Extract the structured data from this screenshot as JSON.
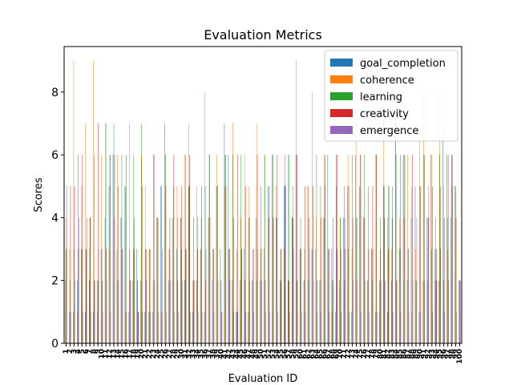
{
  "chart_data": {
    "type": "bar",
    "title": "Evaluation Metrics",
    "xlabel": "Evaluation ID",
    "ylabel": "Scores",
    "ylim": [
      0,
      9.45
    ],
    "yticks": [
      0,
      2,
      4,
      6,
      8
    ],
    "grid": false,
    "legend_position": "top-right",
    "categories": [
      "1",
      "2",
      "3",
      "4",
      "5",
      "6",
      "7",
      "8",
      "9",
      "10",
      "11",
      "12",
      "13",
      "14",
      "15",
      "16",
      "17",
      "18",
      "19",
      "20",
      "21",
      "22",
      "23",
      "24",
      "25",
      "26",
      "27",
      "28",
      "29",
      "30",
      "31",
      "32",
      "33",
      "34",
      "35",
      "36",
      "37",
      "38",
      "39",
      "40",
      "41",
      "42",
      "43",
      "44",
      "45",
      "46",
      "47",
      "48",
      "49",
      "50",
      "51",
      "52",
      "53",
      "54",
      "55",
      "56",
      "57",
      "58",
      "59",
      "60",
      "61",
      "62",
      "63",
      "64",
      "65",
      "66",
      "67",
      "68",
      "69",
      "70",
      "71",
      "72",
      "73",
      "74",
      "75",
      "76",
      "77",
      "78",
      "79",
      "80",
      "81",
      "82",
      "83",
      "84",
      "85",
      "86",
      "87",
      "88",
      "89",
      "90",
      "91",
      "92",
      "93",
      "94",
      "95",
      "96",
      "97",
      "98",
      "99",
      "100"
    ],
    "series": [
      {
        "name": "goal_completion",
        "color": "#1f77b4",
        "values": [
          2,
          1,
          1,
          2,
          3,
          1,
          2,
          1,
          2,
          3,
          4,
          5,
          6,
          3,
          4,
          5,
          1,
          2,
          3,
          2,
          1,
          1,
          1,
          4,
          5,
          7,
          2,
          4,
          3,
          4,
          2,
          5,
          1,
          2,
          3,
          1,
          4,
          2,
          5,
          3,
          7,
          6,
          2,
          1,
          2,
          3,
          1,
          2,
          4,
          2,
          3,
          5,
          6,
          4,
          2,
          5,
          2,
          4,
          6,
          3,
          2,
          5,
          3,
          3,
          2,
          4,
          6,
          3,
          1,
          2,
          4,
          5,
          1,
          6,
          5,
          4,
          2,
          3,
          1,
          2,
          5,
          1,
          2,
          7,
          3,
          6,
          2,
          4,
          5,
          1,
          2,
          4,
          6,
          3,
          2,
          7,
          6,
          4,
          5,
          2
        ]
      },
      {
        "name": "coherence",
        "color": "#ff7f0e",
        "values": [
          4,
          3,
          9,
          1,
          5,
          7,
          3,
          9,
          1,
          6,
          7,
          3,
          2,
          6,
          4,
          1,
          7,
          3,
          2,
          6,
          5,
          3,
          2,
          4,
          1,
          6,
          3,
          2,
          5,
          4,
          6,
          7,
          2,
          5,
          3,
          8,
          4,
          3,
          6,
          2,
          5,
          3,
          7,
          1,
          4,
          6,
          5,
          2,
          7,
          3,
          6,
          4,
          1,
          5,
          2,
          3,
          6,
          4,
          9,
          3,
          2,
          5,
          8,
          4,
          2,
          6,
          3,
          1,
          5,
          4,
          2,
          6,
          3,
          7,
          5,
          4,
          2,
          3,
          6,
          1,
          8,
          4,
          3,
          8,
          4,
          2,
          6,
          5,
          3,
          7,
          8,
          4,
          6,
          2,
          8,
          5,
          3,
          6,
          4,
          2
        ]
      },
      {
        "name": "learning",
        "color": "#2ca02c",
        "values": [
          3,
          2,
          3,
          6,
          3,
          3,
          4,
          6,
          2,
          3,
          7,
          6,
          7,
          2,
          6,
          5,
          3,
          6,
          2,
          7,
          3,
          3,
          6,
          4,
          5,
          6,
          3,
          5,
          4,
          3,
          6,
          5,
          2,
          4,
          4,
          5,
          6,
          3,
          5,
          2,
          6,
          3,
          6,
          3,
          6,
          2,
          4,
          3,
          2,
          5,
          6,
          4,
          6,
          4,
          3,
          6,
          6,
          5,
          2,
          4,
          3,
          2,
          3,
          6,
          5,
          4,
          3,
          2,
          6,
          4,
          5,
          3,
          6,
          4,
          6,
          6,
          5,
          2,
          6,
          4,
          5,
          5,
          4,
          6,
          3,
          6,
          3,
          1,
          2,
          5,
          6,
          2,
          3,
          4,
          6,
          2,
          4,
          6,
          5,
          2
        ]
      },
      {
        "name": "creativity",
        "color": "#d62728",
        "values": [
          3,
          5,
          5,
          3,
          6,
          3,
          4,
          2,
          7,
          2,
          3,
          6,
          4,
          5,
          3,
          6,
          2,
          4,
          1,
          5,
          3,
          3,
          6,
          4,
          1,
          5,
          4,
          6,
          2,
          5,
          3,
          6,
          4,
          3,
          5,
          2,
          6,
          3,
          5,
          1,
          6,
          3,
          4,
          6,
          3,
          5,
          4,
          3,
          6,
          3,
          2,
          5,
          4,
          6,
          3,
          5,
          2,
          4,
          6,
          3,
          5,
          4,
          5,
          2,
          4,
          6,
          3,
          4,
          6,
          3,
          3,
          5,
          4,
          2,
          6,
          4,
          3,
          5,
          6,
          3,
          4,
          3,
          5,
          2,
          6,
          4,
          3,
          6,
          2,
          5,
          6,
          4,
          5,
          3,
          5,
          4,
          6,
          5,
          4,
          2
        ]
      },
      {
        "name": "emergence",
        "color": "#9467bd",
        "values": [
          5,
          1,
          2,
          4,
          1,
          4,
          1,
          2,
          3,
          1,
          2,
          1,
          6,
          2,
          3,
          1,
          2,
          3,
          1,
          1,
          2,
          1,
          2,
          1,
          3,
          1,
          2,
          1,
          1,
          2,
          3,
          1,
          2,
          1,
          1,
          3,
          4,
          1,
          2,
          1,
          5,
          2,
          1,
          1,
          3,
          1,
          2,
          1,
          3,
          2,
          1,
          1,
          4,
          1,
          2,
          5,
          1,
          3,
          2,
          1,
          1,
          3,
          2,
          1,
          1,
          5,
          1,
          2,
          3,
          1,
          4,
          1,
          2,
          4,
          1,
          2,
          1,
          3,
          1,
          2,
          2,
          5,
          1,
          2,
          1,
          6,
          1,
          2,
          4,
          1,
          2,
          5,
          1,
          2,
          3,
          1,
          2,
          6,
          1,
          2
        ]
      }
    ]
  }
}
